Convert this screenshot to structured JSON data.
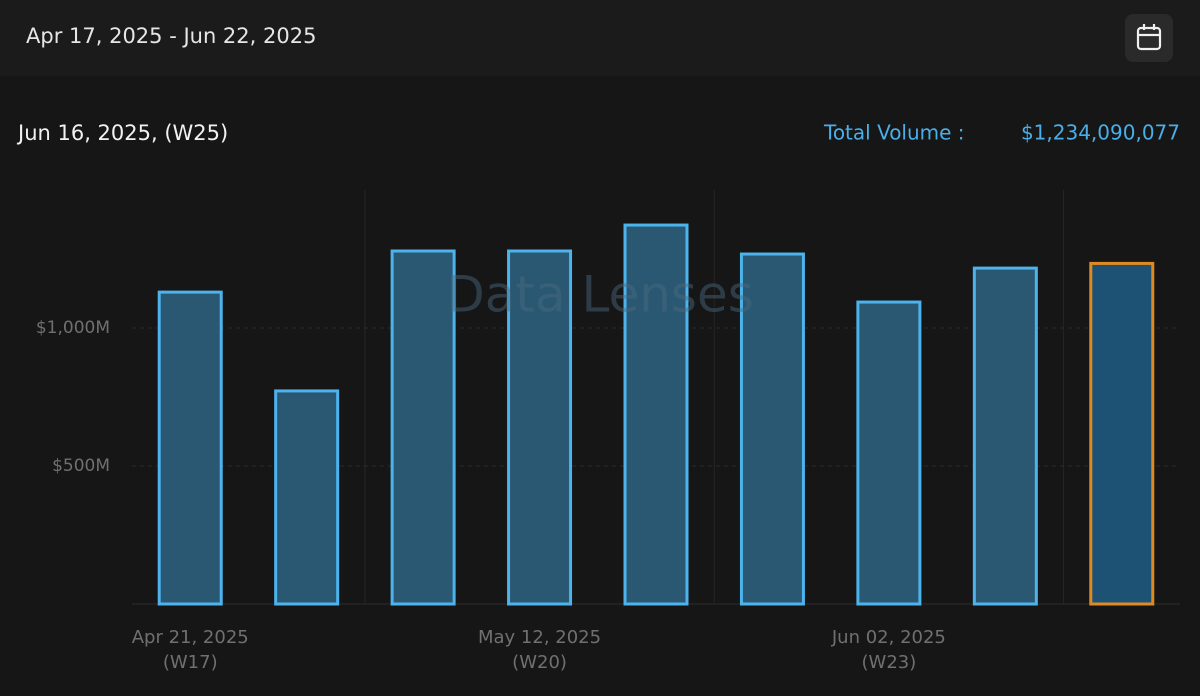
{
  "header": {
    "date_range": "Apr 17, 2025 - Jun 22, 2025"
  },
  "chart_data": {
    "type": "bar",
    "title": "Jun 16, 2025, (W25)",
    "total_label": "Total Volume :",
    "total_value": "$1,234,090,077",
    "watermark": "Data Lenses",
    "categories": [
      "Apr 21, 2025",
      null,
      null,
      "May 12, 2025",
      null,
      null,
      "Jun 02, 2025",
      null,
      null
    ],
    "category_sublabels": [
      "(W17)",
      null,
      null,
      "(W20)",
      null,
      null,
      "(W23)",
      null,
      null
    ],
    "values": [
      1130,
      772,
      1279,
      1279,
      1373,
      1268,
      1094,
      1217,
      1234
    ],
    "color": "#4db3ec",
    "highlight_index": 8,
    "highlight_color": "#e08a22",
    "ylim": [
      0,
      1500
    ],
    "yticks": [
      {
        "value": 500,
        "label": "$500M"
      },
      {
        "value": 1000,
        "label": "$1,000M"
      }
    ],
    "grid": true
  }
}
